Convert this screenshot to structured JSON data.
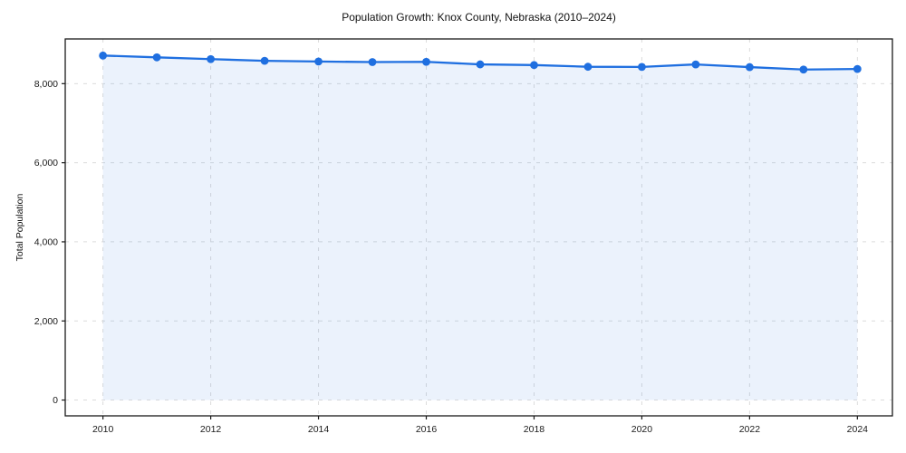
{
  "chart_data": {
    "type": "area",
    "title": "Population Growth: Knox County, Nebraska (2010–2024)",
    "xlabel": "",
    "ylabel": "Total Population",
    "x": [
      2010,
      2011,
      2012,
      2013,
      2014,
      2015,
      2016,
      2017,
      2018,
      2019,
      2020,
      2021,
      2022,
      2023,
      2024
    ],
    "values": [
      8710,
      8665,
      8620,
      8578,
      8560,
      8545,
      8552,
      8487,
      8470,
      8427,
      8423,
      8486,
      8418,
      8357,
      8372
    ],
    "series_name": "Total Population",
    "xticks": [
      2010,
      2012,
      2014,
      2016,
      2018,
      2020,
      2022,
      2024
    ],
    "yticks": [
      0,
      2000,
      4000,
      6000,
      8000
    ],
    "xlim": [
      2009.3,
      2024.65
    ],
    "ylim": [
      -400,
      9130
    ],
    "grid": true,
    "grid_style": "dashed",
    "legend": false,
    "marker": "circle",
    "colors": {
      "line": "#1f6fe0",
      "marker": "#1f6fe0",
      "area_fill": "rgba(31,111,224,0.09)",
      "grid": "#dcdcdc",
      "spine": "#1a1a1a",
      "tick_text": "#1a1a1a"
    }
  }
}
